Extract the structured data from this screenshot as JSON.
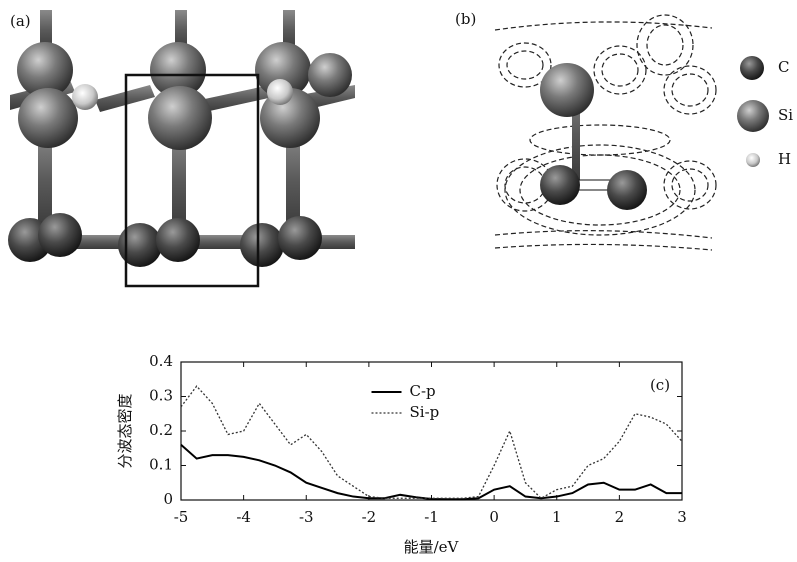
{
  "figure": {
    "panel_a": "(a)",
    "panel_b": "(b)",
    "legend": [
      "C",
      "Si",
      "H"
    ]
  },
  "chart_data": {
    "type": "line",
    "panel_label": "(c)",
    "xlabel": "能量/eV",
    "ylabel": "分波态密度",
    "x": [
      -5,
      -4.75,
      -4.5,
      -4.25,
      -4,
      -3.75,
      -3.5,
      -3.25,
      -3,
      -2.75,
      -2.5,
      -2.25,
      -2,
      -1.75,
      -1.5,
      -1.25,
      -1,
      -0.75,
      -0.5,
      -0.25,
      0,
      0.25,
      0.5,
      0.75,
      1,
      1.25,
      1.5,
      1.75,
      2,
      2.25,
      2.5,
      2.75,
      3
    ],
    "series": [
      {
        "name": "C-p",
        "color": "#000000",
        "dash": "solid",
        "values": [
          0.16,
          0.12,
          0.13,
          0.13,
          0.125,
          0.115,
          0.1,
          0.08,
          0.05,
          0.035,
          0.02,
          0.01,
          0.005,
          0.005,
          0.015,
          0.008,
          0.003,
          0.002,
          0.002,
          0.005,
          0.03,
          0.04,
          0.01,
          0.005,
          0.01,
          0.02,
          0.045,
          0.05,
          0.03,
          0.03,
          0.045,
          0.02,
          0.02
        ]
      },
      {
        "name": "Si-p",
        "color": "#333333",
        "dash": "dotted",
        "values": [
          0.27,
          0.33,
          0.28,
          0.19,
          0.2,
          0.28,
          0.22,
          0.16,
          0.19,
          0.14,
          0.07,
          0.04,
          0.01,
          0.005,
          0.005,
          0.005,
          0.005,
          0.005,
          0.005,
          0.01,
          0.1,
          0.2,
          0.05,
          0.005,
          0.03,
          0.04,
          0.1,
          0.12,
          0.17,
          0.25,
          0.24,
          0.22,
          0.17
        ]
      }
    ],
    "xlim": [
      -5,
      3
    ],
    "xticks": [
      -5,
      -4,
      -3,
      -2,
      -1,
      0,
      1,
      2,
      3
    ],
    "ylim": [
      0,
      0.4
    ],
    "yticks": [
      0,
      0.1,
      0.2,
      0.3,
      0.4
    ],
    "legend": "upper center"
  }
}
